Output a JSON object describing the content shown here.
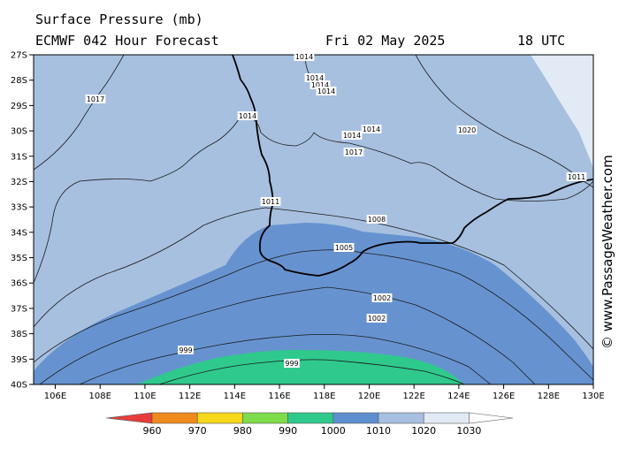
{
  "header": {
    "title": "Surface Pressure (mb)",
    "model": "ECMWF 042 Hour Forecast",
    "date": "Fri 02 May 2025",
    "time": "18 UTC"
  },
  "watermark": "© www.PassageWeather.com",
  "axes": {
    "lat_ticks": [
      "27S",
      "28S",
      "29S",
      "30S",
      "31S",
      "32S",
      "33S",
      "34S",
      "35S",
      "36S",
      "37S",
      "38S",
      "39S",
      "40S"
    ],
    "lon_ticks": [
      "106E",
      "108E",
      "110E",
      "112E",
      "114E",
      "116E",
      "118E",
      "120E",
      "122E",
      "124E",
      "126E",
      "128E",
      "130E"
    ]
  },
  "isobar_labels": [
    "1017",
    "1014",
    "1014",
    "1014",
    "1014",
    "1014",
    "1014",
    "1014",
    "1017",
    "1020",
    "1011",
    "1011",
    "1008",
    "1005",
    "1002",
    "1002",
    "999",
    "999"
  ],
  "colorbar": {
    "labels": [
      "960",
      "970",
      "980",
      "990",
      "1000",
      "1010",
      "1020",
      "1030"
    ],
    "colors": [
      "#e83c3c",
      "#f08a1c",
      "#f5d81a",
      "#7ddc4a",
      "#2fc98c",
      "#5e8fd0",
      "#a7c0e0",
      "#e2eaf5",
      "#ffffff"
    ]
  },
  "colors": {
    "band_1010_1020": "#a7c0e0",
    "band_1000_1010": "#6693d0",
    "band_990_1000": "#2fc98c",
    "band_1020_1030": "#e2eaf5"
  }
}
